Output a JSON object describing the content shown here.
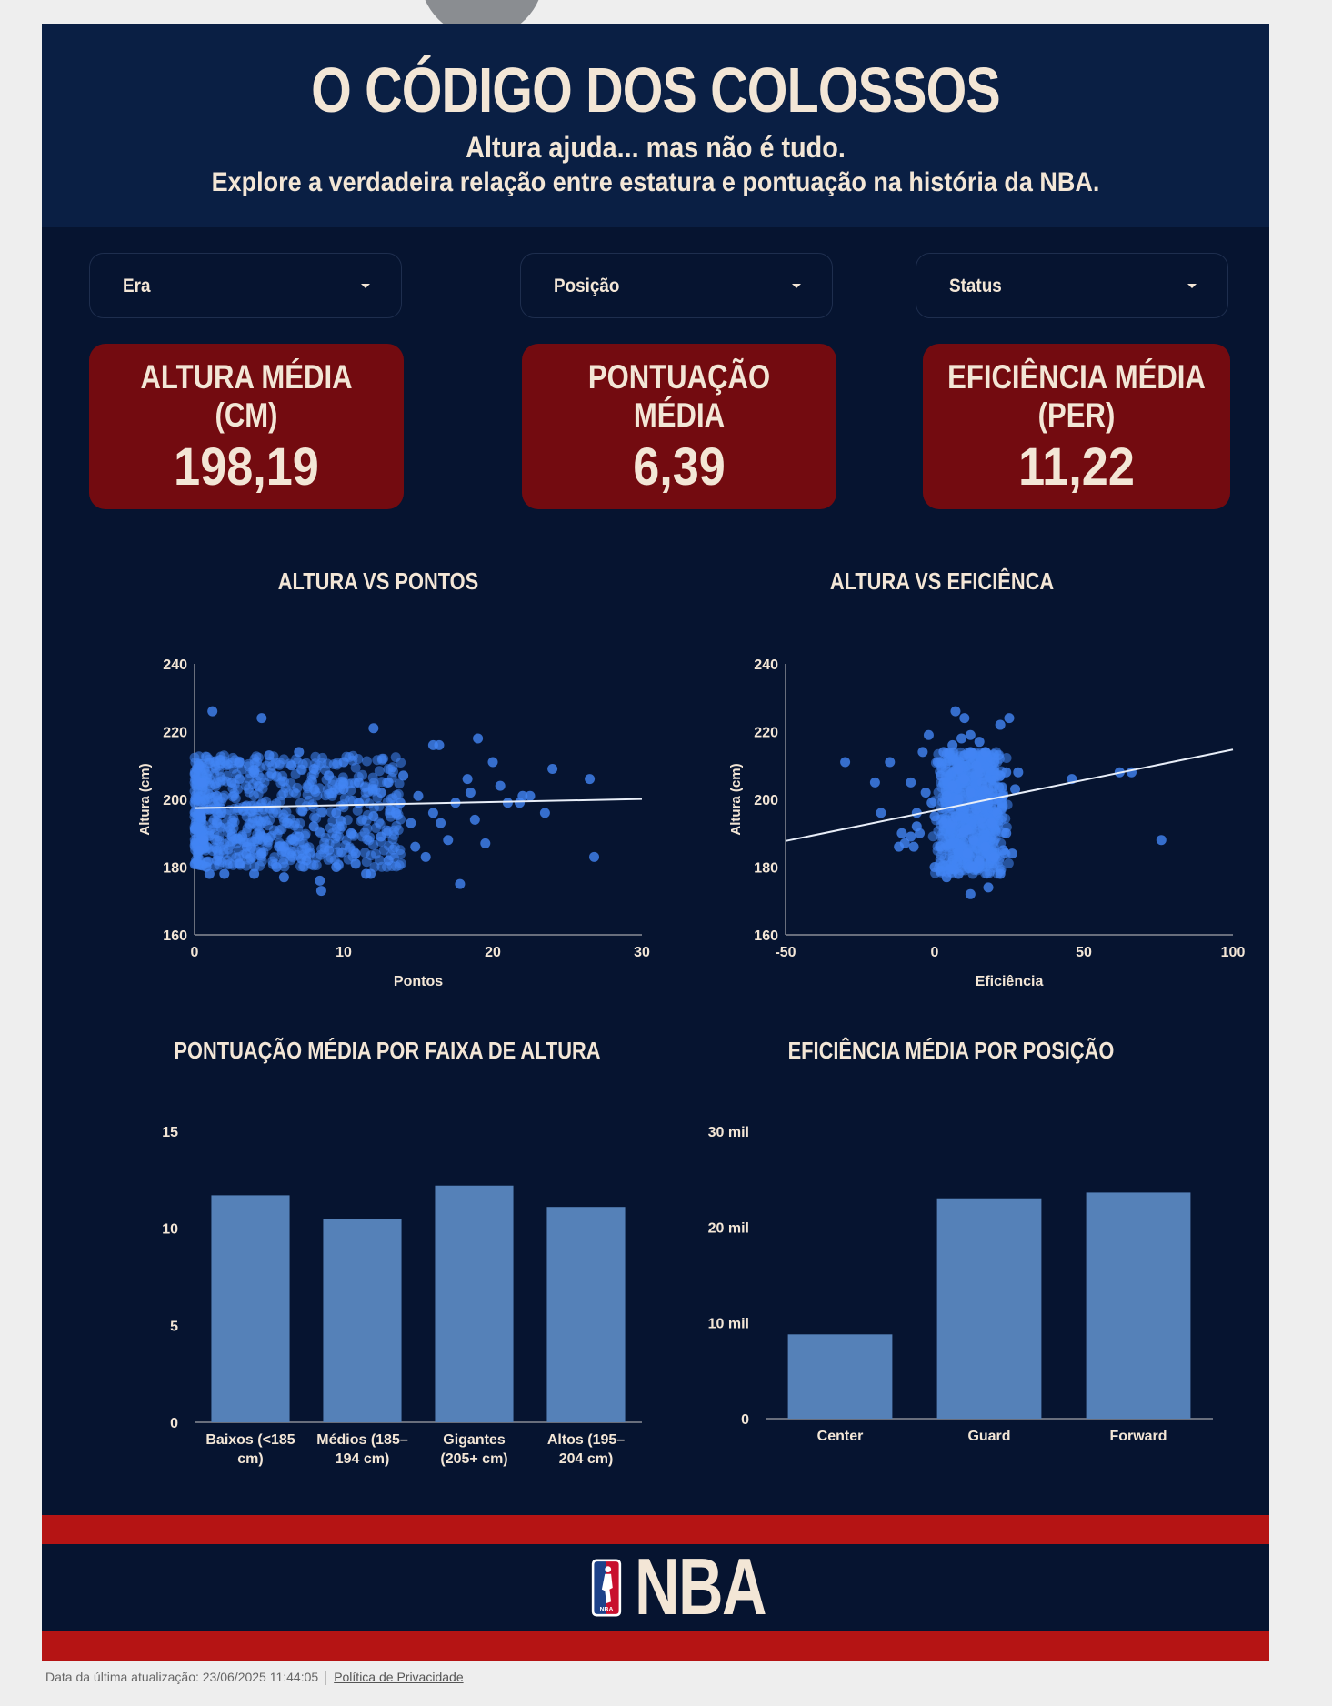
{
  "header": {
    "title": "O CÓDIGO DOS COLOSSOS",
    "subtitle_line1": "Altura ajuda... mas não é tudo.",
    "subtitle_line2": "Explore a verdadeira relação entre estatura e pontuação na história da NBA."
  },
  "filters": [
    {
      "label": "Era",
      "icon": "chevron-down-icon"
    },
    {
      "label": "Posição",
      "icon": "chevron-down-icon"
    },
    {
      "label": "Status",
      "icon": "chevron-down-icon"
    }
  ],
  "kpis": [
    {
      "label": "ALTURA MÉDIA\n(CM)",
      "value": "198,19"
    },
    {
      "label": "PONTUAÇÃO MÉDIA",
      "value": "6,39"
    },
    {
      "label": "EFICIÊNCIA MÉDIA\n(PER)",
      "value": "11,22"
    }
  ],
  "colors": {
    "background": "#061430",
    "header": "#0a1f44",
    "kpi_card": "#730b10",
    "text": "#f3e6d6",
    "scatter_point": "#4285f4",
    "bar": "#5581b8",
    "accent_red": "#b51414"
  },
  "chart_data": [
    {
      "type": "scatter",
      "title": "ALTURA VS PONTOS",
      "xlabel": "Pontos",
      "ylabel": "Altura (cm)",
      "xlim": [
        0,
        30
      ],
      "ylim": [
        160,
        240
      ],
      "xticks": [
        "0",
        "10",
        "20",
        "30"
      ],
      "yticks": [
        "160",
        "180",
        "200",
        "220",
        "240"
      ],
      "trendline": {
        "x": [
          0,
          30
        ],
        "y": [
          197.4,
          200.1
        ]
      },
      "points": [
        [
          1.2,
          226
        ],
        [
          4.5,
          224
        ],
        [
          12,
          221
        ],
        [
          16,
          216
        ],
        [
          16.4,
          216
        ],
        [
          19,
          218
        ],
        [
          20,
          211
        ],
        [
          24,
          209
        ],
        [
          26.5,
          206
        ],
        [
          22.5,
          201
        ],
        [
          23.5,
          196
        ],
        [
          26.8,
          183
        ],
        [
          17.8,
          175
        ],
        [
          8.5,
          173
        ],
        [
          8.4,
          176
        ],
        [
          6,
          177
        ],
        [
          4,
          178
        ],
        [
          1,
          178
        ],
        [
          2,
          178
        ],
        [
          11.5,
          178
        ],
        [
          11.8,
          178
        ],
        [
          15.5,
          183
        ],
        [
          19.5,
          187
        ],
        [
          18.8,
          194
        ],
        [
          21,
          199
        ],
        [
          20.5,
          204
        ],
        [
          18.3,
          206
        ],
        [
          14,
          207
        ],
        [
          13,
          205
        ],
        [
          10,
          211
        ],
        [
          7,
          214
        ],
        [
          5,
          213
        ],
        [
          3,
          211
        ],
        [
          0.3,
          210
        ],
        [
          0.5,
          205
        ],
        [
          0.4,
          196
        ],
        [
          0.6,
          188
        ],
        [
          0.3,
          185
        ],
        [
          1.5,
          182
        ],
        [
          3,
          181
        ],
        [
          5.5,
          180
        ],
        [
          7.5,
          182
        ],
        [
          9,
          185
        ],
        [
          10.5,
          190
        ],
        [
          12.5,
          189
        ],
        [
          14.5,
          193
        ],
        [
          16,
          196
        ],
        [
          17.5,
          199
        ],
        [
          18.5,
          202
        ],
        [
          21.8,
          199
        ],
        [
          22,
          201
        ],
        [
          15,
          201
        ],
        [
          13.5,
          196
        ],
        [
          12,
          195
        ],
        [
          11,
          199
        ],
        [
          10,
          203
        ],
        [
          9,
          207
        ],
        [
          8,
          209
        ],
        [
          6.5,
          210
        ],
        [
          4,
          208
        ],
        [
          2.5,
          205
        ],
        [
          1.5,
          201
        ],
        [
          1,
          197
        ],
        [
          1.5,
          193
        ],
        [
          2.5,
          189
        ],
        [
          3.5,
          186
        ],
        [
          4.5,
          184
        ],
        [
          6,
          186
        ],
        [
          7,
          189
        ],
        [
          8,
          192
        ],
        [
          9.5,
          196
        ],
        [
          11,
          205
        ],
        [
          12.5,
          202
        ],
        [
          13.8,
          199
        ],
        [
          16.5,
          193
        ],
        [
          17,
          188
        ],
        [
          14.8,
          186
        ],
        [
          13,
          182
        ],
        [
          10.8,
          184
        ],
        [
          9.5,
          180
        ]
      ]
    },
    {
      "type": "scatter",
      "title": "ALTURA VS EFICIÊNCA",
      "xlabel": "Eficiência",
      "ylabel": "Altura (cm)",
      "xlim": [
        -50,
        100
      ],
      "ylim": [
        160,
        240
      ],
      "xticks": [
        "-50",
        "0",
        "50",
        "100"
      ],
      "yticks": [
        "160",
        "180",
        "200",
        "220",
        "240"
      ],
      "trendline": {
        "x": [
          -50,
          100
        ],
        "y": [
          187.7,
          214.7
        ]
      },
      "points": [
        [
          -30,
          211
        ],
        [
          -15,
          211
        ],
        [
          -20,
          205
        ],
        [
          -18,
          196
        ],
        [
          -8,
          205
        ],
        [
          -6,
          196
        ],
        [
          -5,
          190
        ],
        [
          -10,
          187
        ],
        [
          -4,
          214
        ],
        [
          -2,
          219
        ],
        [
          7,
          226
        ],
        [
          10,
          224
        ],
        [
          22,
          222
        ],
        [
          25,
          224
        ],
        [
          28,
          208
        ],
        [
          27,
          203
        ],
        [
          20,
          200
        ],
        [
          46,
          206
        ],
        [
          62,
          208
        ],
        [
          66,
          208
        ],
        [
          76,
          188
        ],
        [
          22,
          178
        ],
        [
          18,
          174
        ],
        [
          12,
          172
        ],
        [
          8,
          178
        ],
        [
          4,
          177
        ],
        [
          0,
          180
        ],
        [
          2,
          186
        ],
        [
          3,
          193
        ],
        [
          5,
          198
        ],
        [
          6,
          204
        ],
        [
          8,
          209
        ],
        [
          10,
          213
        ],
        [
          12,
          214
        ],
        [
          14,
          210
        ],
        [
          16,
          205
        ],
        [
          18,
          199
        ],
        [
          19,
          193
        ],
        [
          17,
          186
        ],
        [
          15,
          182
        ],
        [
          13,
          180
        ],
        [
          11,
          184
        ],
        [
          9,
          190
        ],
        [
          7,
          195
        ],
        [
          4,
          201
        ],
        [
          2,
          207
        ],
        [
          1,
          211
        ],
        [
          3,
          214
        ],
        [
          6,
          216
        ],
        [
          9,
          218
        ],
        [
          12,
          219
        ],
        [
          15,
          217
        ],
        [
          17,
          214
        ],
        [
          20,
          211
        ],
        [
          22,
          207
        ],
        [
          23,
          201
        ],
        [
          21,
          196
        ],
        [
          24,
          190
        ],
        [
          23,
          185
        ],
        [
          20,
          183
        ],
        [
          14,
          197
        ],
        [
          12,
          202
        ],
        [
          10,
          206
        ],
        [
          8,
          200
        ],
        [
          6,
          193
        ],
        [
          11,
          191
        ],
        [
          13,
          188
        ],
        [
          16,
          193
        ],
        [
          18,
          203
        ],
        [
          15,
          208
        ],
        [
          -1,
          199
        ],
        [
          -3,
          202
        ],
        [
          0,
          195
        ],
        [
          -6,
          192
        ],
        [
          -8,
          189
        ],
        [
          -12,
          186
        ],
        [
          -7,
          186
        ],
        [
          -11,
          190
        ],
        [
          26,
          184
        ],
        [
          24,
          208
        ]
      ]
    },
    {
      "type": "bar",
      "title": "PONTUAÇÃO MÉDIA POR FAIXA DE ALTURA",
      "categories": [
        "Baixos (<185 cm)",
        "Médios (185–194 cm)",
        "Gigantes (205+ cm)",
        "Altos (195–204 cm)"
      ],
      "category_lines": [
        [
          "Baixos (<185",
          "cm)"
        ],
        [
          "Médios (185–",
          "194 cm)"
        ],
        [
          "Gigantes",
          "(205+ cm)"
        ],
        [
          "Altos (195–",
          "204 cm)"
        ]
      ],
      "values": [
        11.7,
        10.5,
        12.2,
        11.1
      ],
      "ylim": [
        0,
        15
      ],
      "yticks": [
        "0",
        "5",
        "10",
        "15"
      ]
    },
    {
      "type": "bar",
      "title": "EFICIÊNCIA MÉDIA POR POSIÇÃO",
      "categories": [
        "Center",
        "Guard",
        "Forward"
      ],
      "category_lines": [
        [
          "Center"
        ],
        [
          "Guard"
        ],
        [
          "Forward"
        ]
      ],
      "values": [
        8800,
        23000,
        23600
      ],
      "ylim": [
        0,
        30000
      ],
      "yticks": [
        "0",
        "10 mil",
        "20 mil",
        "30 mil"
      ]
    }
  ],
  "branding": {
    "logo_text": "NBA",
    "logo_badge": "NBA"
  },
  "footer": {
    "last_update": "Data da última atualização: 23/06/2025 11:44:05",
    "privacy_link": "Política de Privacidade"
  }
}
